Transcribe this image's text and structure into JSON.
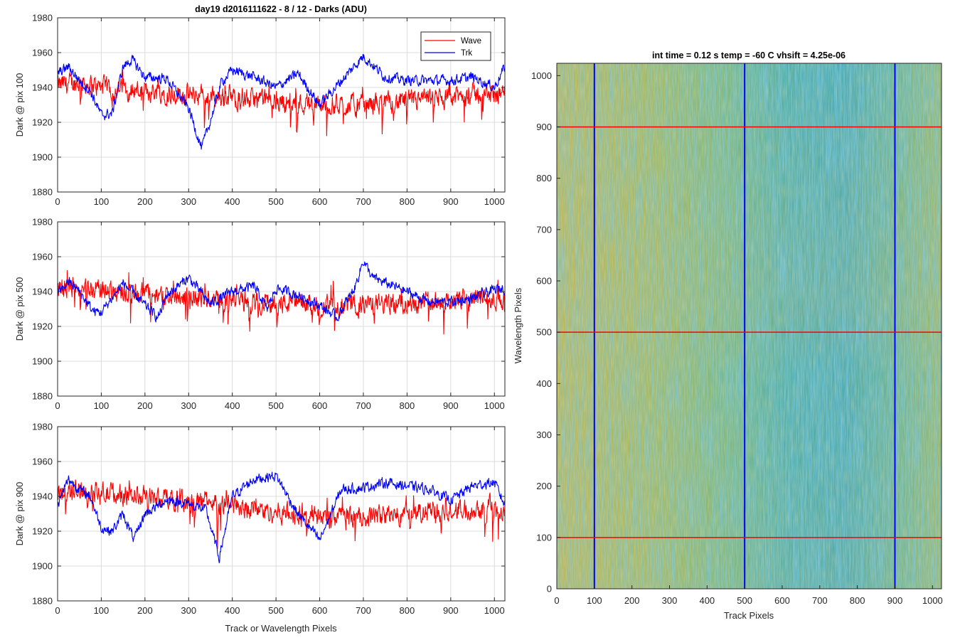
{
  "figure": {
    "left_title": "day19 d2016111622 - 8 / 12 - Darks (ADU)",
    "left_xlabel": "Track or Wavelength Pixels",
    "right_title": "int time = 0.12 s    temp = -60 C    vhsift = 4.25e-06",
    "right_xlabel": "Track Pixels",
    "right_ylabel": "Wavelength Pixels"
  },
  "legend": {
    "wave": "Wave",
    "trk": "Trk"
  },
  "colors": {
    "wave": "#ff0000",
    "trk": "#0000ff",
    "grid": "#dcdcdc",
    "axis": "#262626"
  },
  "chart_data": [
    {
      "type": "line",
      "ylabel": "Dark @ pix 100",
      "xlim": [
        0,
        1024
      ],
      "ylim": [
        1880,
        1980
      ],
      "xticks": [
        "0",
        "100",
        "200",
        "300",
        "400",
        "500",
        "600",
        "700",
        "800",
        "900",
        "1000"
      ],
      "yticks": [
        "1880",
        "1900",
        "1920",
        "1940",
        "1960",
        "1980"
      ],
      "grid": true,
      "legend_position": "top-right",
      "series": [
        {
          "name": "Wave",
          "color": "#ff0000",
          "x": [
            0,
            50,
            100,
            150,
            200,
            250,
            300,
            350,
            400,
            450,
            500,
            550,
            600,
            650,
            700,
            750,
            800,
            850,
            900,
            950,
            1000,
            1024
          ],
          "values": [
            1941,
            1943,
            1940,
            1939,
            1938,
            1937,
            1936,
            1935,
            1934,
            1933,
            1932,
            1931,
            1930,
            1930,
            1930,
            1931,
            1932,
            1933,
            1934,
            1936,
            1936,
            1937
          ]
        },
        {
          "name": "Trk",
          "color": "#0000ff",
          "x": [
            0,
            25,
            50,
            75,
            100,
            125,
            150,
            170,
            200,
            250,
            300,
            330,
            350,
            375,
            400,
            450,
            500,
            550,
            600,
            650,
            700,
            750,
            800,
            850,
            900,
            950,
            1000,
            1024
          ],
          "values": [
            1948,
            1952,
            1944,
            1938,
            1924,
            1925,
            1952,
            1956,
            1946,
            1945,
            1928,
            1905,
            1921,
            1943,
            1950,
            1946,
            1940,
            1948,
            1930,
            1944,
            1958,
            1946,
            1944,
            1944,
            1944,
            1946,
            1940,
            1952
          ]
        }
      ]
    },
    {
      "type": "line",
      "ylabel": "Dark @ pix 500",
      "xlim": [
        0,
        1024
      ],
      "ylim": [
        1880,
        1980
      ],
      "xticks": [
        "0",
        "100",
        "200",
        "300",
        "400",
        "500",
        "600",
        "700",
        "800",
        "900",
        "1000"
      ],
      "yticks": [
        "1880",
        "1900",
        "1920",
        "1940",
        "1960",
        "1980"
      ],
      "grid": true,
      "series": [
        {
          "name": "Wave",
          "color": "#ff0000",
          "x": [
            0,
            50,
            100,
            150,
            200,
            250,
            300,
            350,
            400,
            450,
            500,
            550,
            600,
            650,
            700,
            750,
            800,
            850,
            900,
            950,
            1000,
            1024
          ],
          "values": [
            1942,
            1943,
            1941,
            1940,
            1939,
            1938,
            1937,
            1936,
            1935,
            1934,
            1933,
            1933,
            1932,
            1932,
            1932,
            1933,
            1933,
            1934,
            1935,
            1936,
            1936,
            1935
          ]
        },
        {
          "name": "Trk",
          "color": "#0000ff",
          "x": [
            0,
            25,
            50,
            80,
            100,
            150,
            200,
            230,
            250,
            300,
            350,
            400,
            450,
            480,
            500,
            550,
            600,
            640,
            680,
            700,
            720,
            760,
            800,
            850,
            900,
            950,
            1000,
            1024
          ],
          "values": [
            1938,
            1946,
            1940,
            1929,
            1928,
            1945,
            1932,
            1925,
            1938,
            1948,
            1933,
            1940,
            1943,
            1930,
            1942,
            1938,
            1932,
            1925,
            1942,
            1958,
            1948,
            1944,
            1940,
            1934,
            1934,
            1936,
            1941,
            1942
          ]
        }
      ]
    },
    {
      "type": "line",
      "ylabel": "Dark @ pix 900",
      "xlim": [
        0,
        1024
      ],
      "ylim": [
        1880,
        1980
      ],
      "xticks": [
        "0",
        "100",
        "200",
        "300",
        "400",
        "500",
        "600",
        "700",
        "800",
        "900",
        "1000"
      ],
      "yticks": [
        "1880",
        "1900",
        "1920",
        "1940",
        "1960",
        "1980"
      ],
      "grid": true,
      "series": [
        {
          "name": "Wave",
          "color": "#ff0000",
          "x": [
            0,
            50,
            100,
            150,
            200,
            250,
            300,
            350,
            400,
            450,
            500,
            550,
            600,
            650,
            700,
            750,
            800,
            850,
            900,
            950,
            1000,
            1024
          ],
          "values": [
            1942,
            1944,
            1942,
            1941,
            1940,
            1939,
            1938,
            1937,
            1935,
            1933,
            1931,
            1929,
            1928,
            1928,
            1928,
            1929,
            1930,
            1931,
            1932,
            1933,
            1934,
            1932
          ]
        },
        {
          "name": "Trk",
          "color": "#0000ff",
          "x": [
            0,
            25,
            50,
            75,
            100,
            125,
            150,
            175,
            200,
            250,
            300,
            340,
            370,
            400,
            450,
            500,
            550,
            600,
            650,
            700,
            750,
            800,
            850,
            900,
            950,
            1000,
            1024
          ],
          "values": [
            1935,
            1950,
            1944,
            1940,
            1922,
            1920,
            1930,
            1915,
            1930,
            1938,
            1936,
            1932,
            1905,
            1940,
            1950,
            1952,
            1930,
            1915,
            1944,
            1945,
            1948,
            1946,
            1944,
            1938,
            1946,
            1948,
            1935
          ]
        }
      ]
    },
    {
      "type": "heatmap",
      "xlabel": "Track Pixels",
      "ylabel": "Wavelength Pixels",
      "xlim": [
        0,
        1024
      ],
      "ylim": [
        0,
        1024
      ],
      "xticks": [
        "0",
        "100",
        "200",
        "300",
        "400",
        "500",
        "600",
        "700",
        "800",
        "900",
        "1000"
      ],
      "yticks": [
        "0",
        "100",
        "200",
        "300",
        "400",
        "500",
        "600",
        "700",
        "800",
        "900",
        "1000"
      ],
      "colormap": [
        "#2c85c9",
        "#28a5c6",
        "#39b9a6",
        "#7ebd74",
        "#b2b95c",
        "#c9b455"
      ],
      "vertical_lines": {
        "color": "#0000ff",
        "x": [
          100,
          500,
          900
        ]
      },
      "horizontal_lines": {
        "color": "#ff0000",
        "y": [
          100,
          500,
          900
        ]
      }
    }
  ]
}
